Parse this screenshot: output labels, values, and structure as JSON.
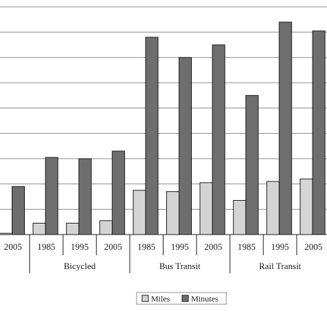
{
  "chart_data": {
    "type": "bar",
    "title": "",
    "xlabel": "",
    "ylabel": "",
    "ylim": [
      0,
      9
    ],
    "grid": true,
    "legend_position": "bottom-center",
    "groups": [
      {
        "name": "",
        "categories": [
          "2005"
        ]
      },
      {
        "name": "Bicycled",
        "categories": [
          "1985",
          "1995",
          "2005"
        ]
      },
      {
        "name": "Bus Transit",
        "categories": [
          "1985",
          "1995",
          "2005"
        ]
      },
      {
        "name": "Rail Transit",
        "categories": [
          "1985",
          "1995",
          "2005"
        ]
      }
    ],
    "categories": [
      "2005",
      "1985",
      "1995",
      "2005",
      "1985",
      "1995",
      "2005",
      "1985",
      "1995",
      "2005"
    ],
    "series": [
      {
        "name": "Miles",
        "color": "#d4d4d4",
        "values": [
          0.05,
          0.45,
          0.45,
          0.55,
          1.75,
          1.7,
          2.05,
          1.35,
          2.1,
          2.2
        ]
      },
      {
        "name": "Minutes",
        "color": "#6e6e6e",
        "values": [
          1.9,
          3.05,
          3.0,
          3.3,
          7.8,
          7.0,
          7.5,
          5.5,
          8.4,
          8.05
        ]
      }
    ]
  }
}
